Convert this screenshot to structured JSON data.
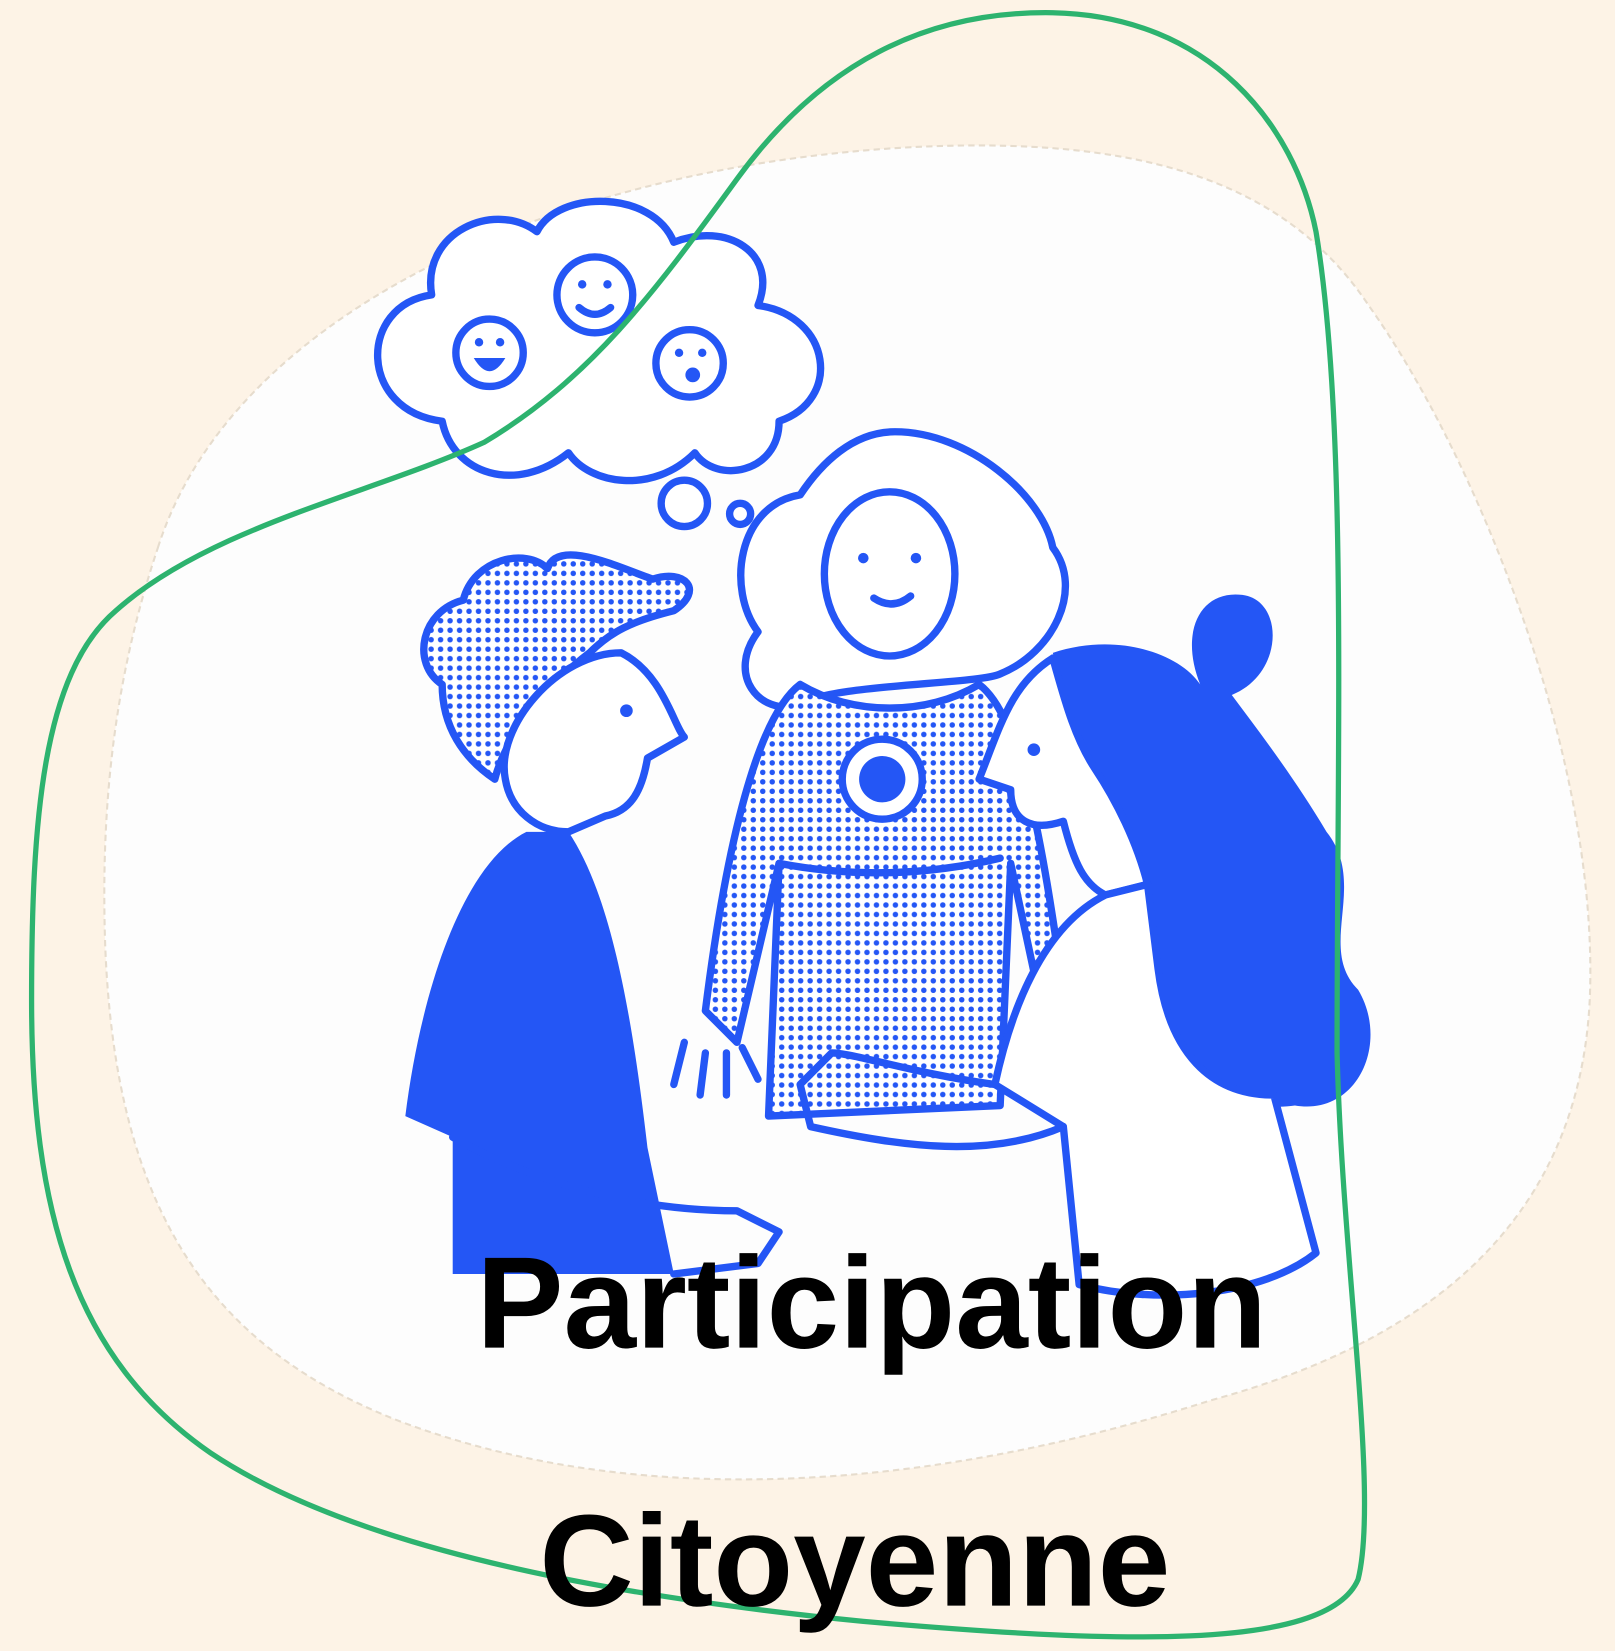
{
  "heading": {
    "line1": "Participation",
    "line2": "Citoyenne"
  }
}
